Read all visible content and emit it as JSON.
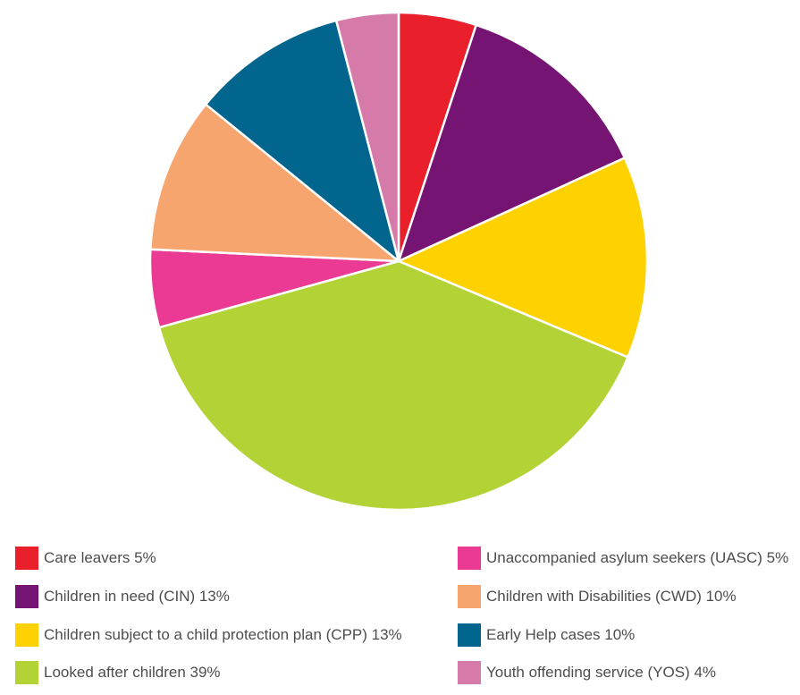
{
  "chart_data": {
    "type": "pie",
    "slices": [
      {
        "label": "Care leavers 5%",
        "value": 5,
        "color": "#E91F2B"
      },
      {
        "label": "Children in need (CIN) 13%",
        "value": 13,
        "color": "#761473"
      },
      {
        "label": "Children subject to a child protection plan (CPP) 13%",
        "value": 13,
        "color": "#FED200"
      },
      {
        "label": "Looked after children 39%",
        "value": 39,
        "color": "#B2D235"
      },
      {
        "label": "Unaccompanied asylum seekers (UASC) 5%",
        "value": 5,
        "color": "#EA3A93"
      },
      {
        "label": "Children with Disabilities (CWD) 10%",
        "value": 10,
        "color": "#F7A56E"
      },
      {
        "label": "Early Help cases 10%",
        "value": 10,
        "color": "#02658E"
      },
      {
        "label": "Youth offending service (YOS) 4%",
        "value": 4,
        "color": "#D67BA9"
      }
    ],
    "start": "top",
    "direction": "clockwise",
    "legend_position": "bottom"
  }
}
